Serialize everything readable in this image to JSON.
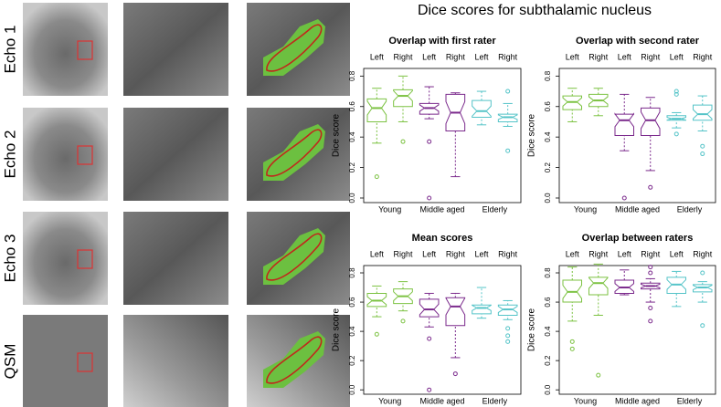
{
  "title": "Dice scores for subthalamic nucleus",
  "row_labels": [
    "Echo 1",
    "Echo 2",
    "Echo 3",
    "QSM"
  ],
  "chart_data": [
    {
      "type": "box",
      "title": "Overlap with first rater",
      "ylabel": "Dice score",
      "categories": [
        "Left",
        "Right",
        "Left",
        "Right",
        "Left",
        "Right"
      ],
      "groups": [
        {
          "name": "Young",
          "color": "#7cc242"
        },
        {
          "name": "Middle aged",
          "color": "#7b2a8c"
        },
        {
          "name": "Elderly",
          "color": "#55c4c8"
        }
      ],
      "ylim": [
        -0.03,
        0.85
      ],
      "yticks": [
        {
          "value": 0,
          "label": "0.0"
        },
        0.2,
        0.4,
        0.6,
        0.8
      ],
      "boxes": [
        {
          "whislo": 0.36,
          "q1": 0.5,
          "median": 0.59,
          "q3": 0.65,
          "whishi": 0.72,
          "fliers": [
            0.14
          ]
        },
        {
          "whislo": 0.5,
          "q1": 0.6,
          "median": 0.67,
          "q3": 0.71,
          "whishi": 0.8,
          "fliers": [
            0.37
          ]
        },
        {
          "whislo": 0.52,
          "q1": 0.55,
          "median": 0.59,
          "q3": 0.62,
          "whishi": 0.73,
          "fliers": [
            0.37,
            0.0
          ]
        },
        {
          "whislo": 0.14,
          "q1": 0.44,
          "median": 0.56,
          "q3": 0.68,
          "whishi": 0.69,
          "fliers": []
        },
        {
          "whislo": 0.48,
          "q1": 0.53,
          "median": 0.57,
          "q3": 0.64,
          "whishi": 0.7,
          "fliers": []
        },
        {
          "whislo": 0.47,
          "q1": 0.5,
          "median": 0.53,
          "q3": 0.55,
          "whishi": 0.62,
          "fliers": [
            0.7,
            0.31
          ]
        }
      ]
    },
    {
      "type": "box",
      "title": "Overlap with second rater",
      "ylabel": "Dice score",
      "categories": [
        "Left",
        "Right",
        "Left",
        "Right",
        "Left",
        "Right"
      ],
      "groups": [
        {
          "name": "Young",
          "color": "#7cc242"
        },
        {
          "name": "Middle aged",
          "color": "#7b2a8c"
        },
        {
          "name": "Elderly",
          "color": "#55c4c8"
        }
      ],
      "ylim": [
        -0.03,
        0.85
      ],
      "yticks": [
        {
          "value": 0,
          "label": "0.0"
        },
        0.2,
        0.4,
        0.6,
        0.8
      ],
      "boxes": [
        {
          "whislo": 0.5,
          "q1": 0.58,
          "median": 0.63,
          "q3": 0.67,
          "whishi": 0.72,
          "fliers": []
        },
        {
          "whislo": 0.54,
          "q1": 0.6,
          "median": 0.64,
          "q3": 0.68,
          "whishi": 0.72,
          "fliers": []
        },
        {
          "whislo": 0.31,
          "q1": 0.41,
          "median": 0.51,
          "q3": 0.55,
          "whishi": 0.68,
          "fliers": [
            0.0
          ]
        },
        {
          "whislo": 0.18,
          "q1": 0.41,
          "median": 0.51,
          "q3": 0.59,
          "whishi": 0.66,
          "fliers": [
            0.07
          ]
        },
        {
          "whislo": 0.46,
          "q1": 0.51,
          "median": 0.52,
          "q3": 0.54,
          "whishi": 0.56,
          "fliers": [
            0.7,
            0.68,
            0.42
          ]
        },
        {
          "whislo": 0.44,
          "q1": 0.51,
          "median": 0.55,
          "q3": 0.61,
          "whishi": 0.67,
          "fliers": [
            0.34,
            0.29
          ]
        }
      ]
    },
    {
      "type": "box",
      "title": "Mean scores",
      "ylabel": "Dice score",
      "categories": [
        "Left",
        "Right",
        "Left",
        "Right",
        "Left",
        "Right"
      ],
      "groups": [
        {
          "name": "Young",
          "color": "#7cc242"
        },
        {
          "name": "Middle aged",
          "color": "#7b2a8c"
        },
        {
          "name": "Elderly",
          "color": "#55c4c8"
        }
      ],
      "ylim": [
        -0.03,
        0.85
      ],
      "yticks": [
        {
          "value": 0,
          "label": "0.0"
        },
        0.2,
        0.4,
        0.6,
        0.8
      ],
      "boxes": [
        {
          "whislo": 0.5,
          "q1": 0.57,
          "median": 0.61,
          "q3": 0.66,
          "whishi": 0.71,
          "fliers": [
            0.38
          ]
        },
        {
          "whislo": 0.54,
          "q1": 0.59,
          "median": 0.64,
          "q3": 0.69,
          "whishi": 0.74,
          "fliers": [
            0.47
          ]
        },
        {
          "whislo": 0.43,
          "q1": 0.5,
          "median": 0.55,
          "q3": 0.62,
          "whishi": 0.66,
          "fliers": [
            0.35,
            0.0
          ]
        },
        {
          "whislo": 0.22,
          "q1": 0.44,
          "median": 0.57,
          "q3": 0.63,
          "whishi": 0.66,
          "fliers": [
            0.11
          ]
        },
        {
          "whislo": 0.49,
          "q1": 0.52,
          "median": 0.56,
          "q3": 0.58,
          "whishi": 0.7,
          "fliers": []
        },
        {
          "whislo": 0.48,
          "q1": 0.51,
          "median": 0.55,
          "q3": 0.58,
          "whishi": 0.61,
          "fliers": [
            0.42,
            0.37,
            0.33
          ]
        }
      ]
    },
    {
      "type": "box",
      "title": "Overlap between raters",
      "ylabel": "Dice score",
      "categories": [
        "Left",
        "Right",
        "Left",
        "Right",
        "Left",
        "Right"
      ],
      "groups": [
        {
          "name": "Young",
          "color": "#7cc242"
        },
        {
          "name": "Middle aged",
          "color": "#7b2a8c"
        },
        {
          "name": "Elderly",
          "color": "#55c4c8"
        }
      ],
      "ylim": [
        -0.03,
        0.85
      ],
      "yticks": [
        {
          "value": 0,
          "label": "0.0"
        },
        0.2,
        0.4,
        0.6,
        0.8
      ],
      "boxes": [
        {
          "whislo": 0.47,
          "q1": 0.6,
          "median": 0.67,
          "q3": 0.75,
          "whishi": 0.84,
          "fliers": [
            0.33,
            0.28
          ]
        },
        {
          "whislo": 0.51,
          "q1": 0.65,
          "median": 0.73,
          "q3": 0.77,
          "whishi": 0.86,
          "fliers": [
            0.1
          ]
        },
        {
          "whislo": 0.65,
          "q1": 0.66,
          "median": 0.7,
          "q3": 0.75,
          "whishi": 0.82,
          "fliers": []
        },
        {
          "whislo": 0.6,
          "q1": 0.69,
          "median": 0.71,
          "q3": 0.73,
          "whishi": 0.76,
          "fliers": [
            0.84,
            0.8,
            0.56,
            0.47
          ]
        },
        {
          "whislo": 0.57,
          "q1": 0.66,
          "median": 0.72,
          "q3": 0.77,
          "whishi": 0.81,
          "fliers": []
        },
        {
          "whislo": 0.6,
          "q1": 0.67,
          "median": 0.7,
          "q3": 0.72,
          "whishi": 0.74,
          "fliers": [
            0.8,
            0.44
          ]
        }
      ]
    }
  ]
}
